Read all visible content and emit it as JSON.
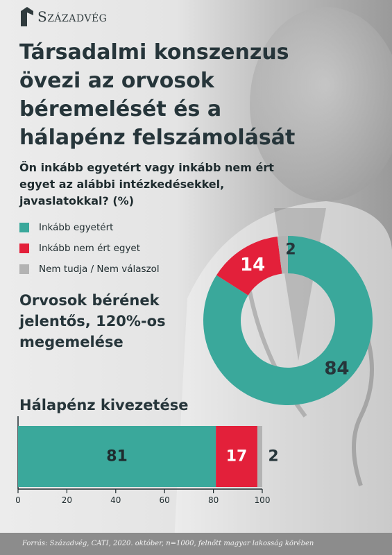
{
  "brand": {
    "name": "Századvég",
    "logo_icon": "szazadveg-logo-icon"
  },
  "title": "Társadalmi konszenzus övezi az orvosok béremelését és a hálapénz felszámolását",
  "question": "Ön inkább egyetért vagy inkább nem ért egyet az alábbi intézkedésekkel, javaslatokkal? (%)",
  "legend": [
    {
      "label": "Inkább egyetért",
      "color": "#3aa89b"
    },
    {
      "label": "Inkább nem ért egyet",
      "color": "#e3203a"
    },
    {
      "label": "Nem tudja / Nem válaszol",
      "color": "#b3b3b3"
    }
  ],
  "chart_data": [
    {
      "type": "pie",
      "donut": true,
      "title": "Orvosok bérének jelentős, 120%-os megemelése",
      "labels": [
        "Inkább egyetért",
        "Inkább nem ért egyet",
        "Nem tudja / Nem válaszol"
      ],
      "values": [
        84,
        14,
        2
      ],
      "colors": [
        "#3aa89b",
        "#e3203a",
        "#b3b3b3"
      ]
    },
    {
      "type": "bar",
      "orientation": "horizontal",
      "stacked": true,
      "title": "Hálapénz kivezetése",
      "categories": [
        "Hálapénz kivezetése"
      ],
      "series": [
        {
          "name": "Inkább egyetért",
          "values": [
            81
          ],
          "color": "#3aa89b"
        },
        {
          "name": "Inkább nem ért egyet",
          "values": [
            17
          ],
          "color": "#e3203a"
        },
        {
          "name": "Nem tudja / Nem válaszol",
          "values": [
            2
          ],
          "color": "#b3b3b3"
        }
      ],
      "xlim": [
        0,
        100
      ],
      "xticks": [
        "0",
        "20",
        "40",
        "60",
        "80",
        "100"
      ]
    }
  ],
  "footer": "Forrás: Századvég, CATI, 2020. október, n=1000, felnőtt magyar lakosság körében"
}
